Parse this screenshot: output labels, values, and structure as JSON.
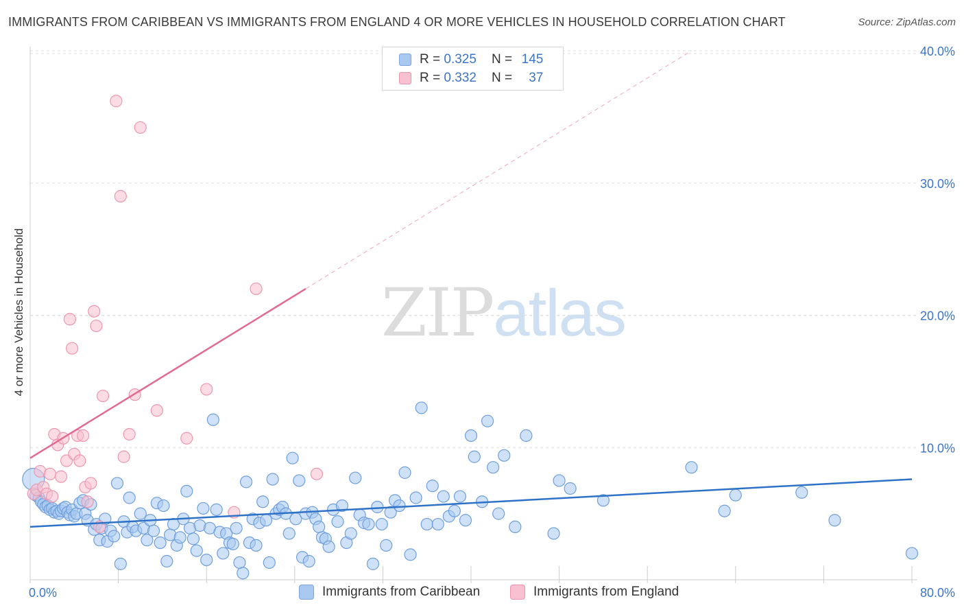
{
  "title": "IMMIGRANTS FROM CARIBBEAN VS IMMIGRANTS FROM ENGLAND 4 OR MORE VEHICLES IN HOUSEHOLD CORRELATION CHART",
  "source": "Source: ZipAtlas.com",
  "watermark": {
    "zip": "ZIP",
    "atlas": "atlas"
  },
  "legend": {
    "rows": [
      {
        "r_label": "R =",
        "r_value": "0.325",
        "n_label": "N =",
        "n_value": "145",
        "color": "#a8c8f0",
        "border": "#7aa6dd"
      },
      {
        "r_label": "R =",
        "r_value": "0.332",
        "n_label": "N =",
        "n_value": "37",
        "color": "#f8c0d0",
        "border": "#e993ad"
      }
    ]
  },
  "colors": {
    "blue_fill": "#a8c8f0",
    "blue_stroke": "#6f9fdc",
    "blue_line": "#2e72c8",
    "pink_fill": "#f8c0d0",
    "pink_stroke": "#ec97b0",
    "pink_line": "#e06a92",
    "axis_label": "#3b74c8",
    "grid": "#dddddd"
  },
  "chart_data": {
    "type": "scatter",
    "title": "IMMIGRANTS FROM CARIBBEAN VS IMMIGRANTS FROM ENGLAND 4 OR MORE VEHICLES IN HOUSEHOLD CORRELATION CHART",
    "xlabel": "",
    "ylabel": "4 or more Vehicles in Household",
    "xlim": [
      0,
      80
    ],
    "ylim": [
      0,
      40
    ],
    "x_tick_labels": [
      "0.0%",
      "80.0%"
    ],
    "y_tick_labels": [
      "10.0%",
      "20.0%",
      "30.0%",
      "40.0%"
    ],
    "y_ticks": [
      10,
      20,
      30,
      40
    ],
    "grid": true,
    "legend_position": "top-center",
    "series": [
      {
        "name": "Immigrants from Caribbean",
        "r": 0.325,
        "n": 145,
        "trend": {
          "x": [
            0,
            80
          ],
          "y": [
            4.0,
            7.6
          ],
          "dashed_extension": false
        },
        "points": [
          [
            0.3,
            7.6
          ],
          [
            0.5,
            6.4
          ],
          [
            0.8,
            6.2
          ],
          [
            1.0,
            5.9
          ],
          [
            1.2,
            5.7
          ],
          [
            1.4,
            5.5
          ],
          [
            1.6,
            5.6
          ],
          [
            1.8,
            5.3
          ],
          [
            2.0,
            5.4
          ],
          [
            2.2,
            5.1
          ],
          [
            2.4,
            5.2
          ],
          [
            2.6,
            5.0
          ],
          [
            2.8,
            5.2
          ],
          [
            3.0,
            5.4
          ],
          [
            3.2,
            5.5
          ],
          [
            3.4,
            5.1
          ],
          [
            3.6,
            4.9
          ],
          [
            3.8,
            5.3
          ],
          [
            4.0,
            4.8
          ],
          [
            4.2,
            5.0
          ],
          [
            4.5,
            5.8
          ],
          [
            4.8,
            6.0
          ],
          [
            5.0,
            5.0
          ],
          [
            5.2,
            4.5
          ],
          [
            5.5,
            5.7
          ],
          [
            5.8,
            3.8
          ],
          [
            6.0,
            4.2
          ],
          [
            6.3,
            3.0
          ],
          [
            6.5,
            3.9
          ],
          [
            6.8,
            4.6
          ],
          [
            7.0,
            2.9
          ],
          [
            7.3,
            3.7
          ],
          [
            7.6,
            3.3
          ],
          [
            7.9,
            7.3
          ],
          [
            8.2,
            1.2
          ],
          [
            8.5,
            4.4
          ],
          [
            8.8,
            3.6
          ],
          [
            9.0,
            6.2
          ],
          [
            9.3,
            4.0
          ],
          [
            9.6,
            3.7
          ],
          [
            10.0,
            5.0
          ],
          [
            10.3,
            3.9
          ],
          [
            10.6,
            3.0
          ],
          [
            10.9,
            4.5
          ],
          [
            11.2,
            3.7
          ],
          [
            11.5,
            5.8
          ],
          [
            11.8,
            2.8
          ],
          [
            12.1,
            5.6
          ],
          [
            12.4,
            1.4
          ],
          [
            12.7,
            3.4
          ],
          [
            13.0,
            4.2
          ],
          [
            13.3,
            2.6
          ],
          [
            13.6,
            3.2
          ],
          [
            13.9,
            4.6
          ],
          [
            14.2,
            6.7
          ],
          [
            14.5,
            3.9
          ],
          [
            14.8,
            3.1
          ],
          [
            15.1,
            2.2
          ],
          [
            15.4,
            4.1
          ],
          [
            15.7,
            5.4
          ],
          [
            16.0,
            1.5
          ],
          [
            16.3,
            3.9
          ],
          [
            16.6,
            12.1
          ],
          [
            16.9,
            5.3
          ],
          [
            17.2,
            3.6
          ],
          [
            17.5,
            2.0
          ],
          [
            17.8,
            3.5
          ],
          [
            18.1,
            2.8
          ],
          [
            18.4,
            2.7
          ],
          [
            18.7,
            3.9
          ],
          [
            19.0,
            1.3
          ],
          [
            19.3,
            0.5
          ],
          [
            19.6,
            7.4
          ],
          [
            19.9,
            2.8
          ],
          [
            20.2,
            4.6
          ],
          [
            20.5,
            2.6
          ],
          [
            20.8,
            4.3
          ],
          [
            21.1,
            5.9
          ],
          [
            21.4,
            4.5
          ],
          [
            21.7,
            1.3
          ],
          [
            22.0,
            7.6
          ],
          [
            22.3,
            5.0
          ],
          [
            22.6,
            5.3
          ],
          [
            22.9,
            5.5
          ],
          [
            23.2,
            5.0
          ],
          [
            23.5,
            3.5
          ],
          [
            23.8,
            9.2
          ],
          [
            24.1,
            4.6
          ],
          [
            24.4,
            7.5
          ],
          [
            24.7,
            1.7
          ],
          [
            25.0,
            5.0
          ],
          [
            25.3,
            1.4
          ],
          [
            25.6,
            5.1
          ],
          [
            25.9,
            4.6
          ],
          [
            26.2,
            4.0
          ],
          [
            26.5,
            3.2
          ],
          [
            26.8,
            3.1
          ],
          [
            27.1,
            2.5
          ],
          [
            27.5,
            5.3
          ],
          [
            27.9,
            4.4
          ],
          [
            28.3,
            5.6
          ],
          [
            28.7,
            2.8
          ],
          [
            29.1,
            3.5
          ],
          [
            29.5,
            7.7
          ],
          [
            29.9,
            4.9
          ],
          [
            30.3,
            4.3
          ],
          [
            30.7,
            4.2
          ],
          [
            31.1,
            1.2
          ],
          [
            31.5,
            5.5
          ],
          [
            31.9,
            4.2
          ],
          [
            32.3,
            2.6
          ],
          [
            32.7,
            5.1
          ],
          [
            33.1,
            6.0
          ],
          [
            33.5,
            5.6
          ],
          [
            34.0,
            8.1
          ],
          [
            34.5,
            1.9
          ],
          [
            35.0,
            6.2
          ],
          [
            35.5,
            13.0
          ],
          [
            36.0,
            4.2
          ],
          [
            36.5,
            7.1
          ],
          [
            37.0,
            4.2
          ],
          [
            37.5,
            6.3
          ],
          [
            38.0,
            4.8
          ],
          [
            38.5,
            5.2
          ],
          [
            39.0,
            6.3
          ],
          [
            39.5,
            4.5
          ],
          [
            40.0,
            10.9
          ],
          [
            40.3,
            9.3
          ],
          [
            41.0,
            5.9
          ],
          [
            41.5,
            12.0
          ],
          [
            42.0,
            8.5
          ],
          [
            42.5,
            5.0
          ],
          [
            43.0,
            9.4
          ],
          [
            44.0,
            4.0
          ],
          [
            45.0,
            10.9
          ],
          [
            47.5,
            3.5
          ],
          [
            48.0,
            7.5
          ],
          [
            49.0,
            6.9
          ],
          [
            52.0,
            6.0
          ],
          [
            60.0,
            8.5
          ],
          [
            63.0,
            5.2
          ],
          [
            64.0,
            6.4
          ],
          [
            70.0,
            6.6
          ],
          [
            73.0,
            4.5
          ],
          [
            80.0,
            2.0
          ]
        ]
      },
      {
        "name": "Immigrants from England",
        "r": 0.332,
        "n": 37,
        "trend": {
          "x": [
            0,
            25
          ],
          "y": [
            9.2,
            22.0
          ],
          "dashed_extension": true,
          "dashed_to": [
            60,
            40
          ]
        },
        "points": [
          [
            0.3,
            6.5
          ],
          [
            0.6,
            6.8
          ],
          [
            0.9,
            8.2
          ],
          [
            1.2,
            7.0
          ],
          [
            1.5,
            6.5
          ],
          [
            1.8,
            8.0
          ],
          [
            2.0,
            6.3
          ],
          [
            2.2,
            11.0
          ],
          [
            2.5,
            10.2
          ],
          [
            2.8,
            7.8
          ],
          [
            3.0,
            10.7
          ],
          [
            3.3,
            9.0
          ],
          [
            3.6,
            19.7
          ],
          [
            3.8,
            17.5
          ],
          [
            4.0,
            9.5
          ],
          [
            4.3,
            10.9
          ],
          [
            4.5,
            9.0
          ],
          [
            4.8,
            10.9
          ],
          [
            5.0,
            7.0
          ],
          [
            5.2,
            5.9
          ],
          [
            5.5,
            7.3
          ],
          [
            5.8,
            20.3
          ],
          [
            6.0,
            19.2
          ],
          [
            6.3,
            4.0
          ],
          [
            6.6,
            13.9
          ],
          [
            7.8,
            36.2
          ],
          [
            8.2,
            29.0
          ],
          [
            8.5,
            9.3
          ],
          [
            9.0,
            11.0
          ],
          [
            9.5,
            14.0
          ],
          [
            10.0,
            34.2
          ],
          [
            11.5,
            12.8
          ],
          [
            14.2,
            10.7
          ],
          [
            16.0,
            14.4
          ],
          [
            18.5,
            5.1
          ],
          [
            20.5,
            22.0
          ],
          [
            26.0,
            8.0
          ]
        ]
      }
    ]
  },
  "bottom_legend": [
    {
      "label": "Immigrants from Caribbean"
    },
    {
      "label": "Immigrants from England"
    }
  ]
}
